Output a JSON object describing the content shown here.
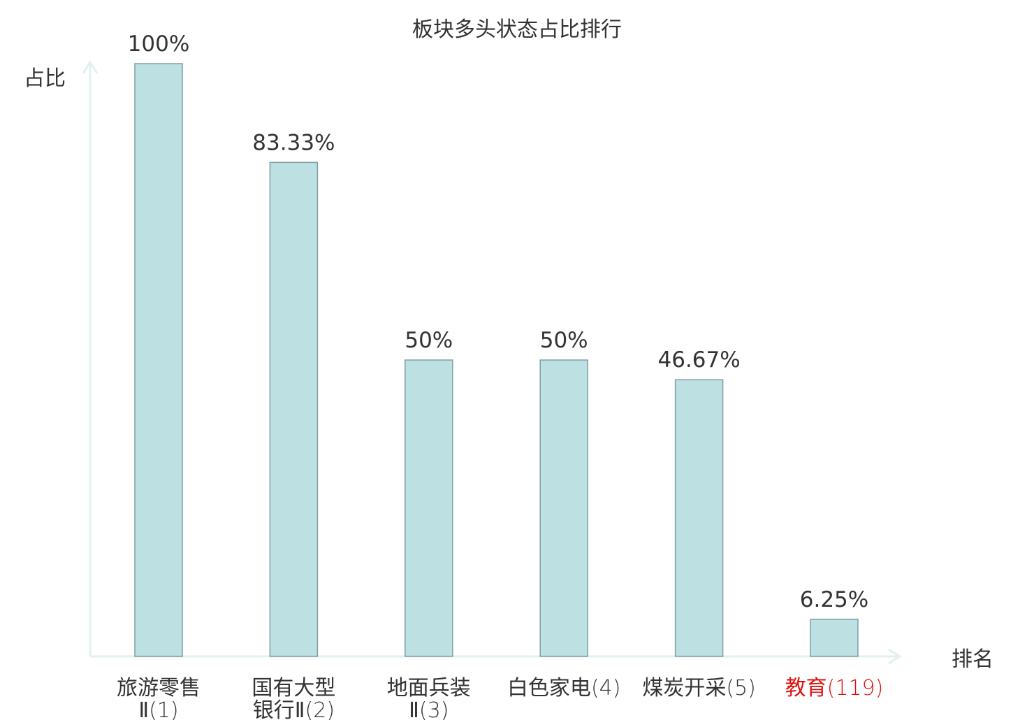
{
  "chart_data": {
    "type": "bar",
    "title": "板块多头状态占比排行",
    "ylabel": "占比",
    "xlabel": "排名",
    "ylim": [
      0,
      100
    ],
    "grid": false,
    "categories": [
      {
        "lines": [
          {
            "name": "旅游零售",
            "rank": ""
          },
          {
            "name": "Ⅱ",
            "rank": "(1)"
          }
        ],
        "highlight": false
      },
      {
        "lines": [
          {
            "name": "国有大型",
            "rank": ""
          },
          {
            "name": "银行Ⅱ",
            "rank": "(2)"
          }
        ],
        "highlight": false
      },
      {
        "lines": [
          {
            "name": "地面兵装",
            "rank": ""
          },
          {
            "name": "Ⅱ",
            "rank": "(3)"
          }
        ],
        "highlight": false
      },
      {
        "lines": [
          {
            "name": "白色家电",
            "rank": "(4)"
          }
        ],
        "highlight": false
      },
      {
        "lines": [
          {
            "name": "煤炭开采",
            "rank": "(5)"
          }
        ],
        "highlight": false
      },
      {
        "lines": [
          {
            "name": "教育",
            "rank": "(119)"
          }
        ],
        "highlight": true
      }
    ],
    "values": [
      100,
      83.33,
      50,
      50,
      46.67,
      6.25
    ],
    "value_labels": [
      "100%",
      "83.33%",
      "50%",
      "50%",
      "46.67%",
      "6.25%"
    ],
    "colors": {
      "bar_fill": "#bde0e3",
      "bar_stroke": "#7f9fa3",
      "axis": "#e0f1ef",
      "text": "#333333",
      "highlight": "#dd1111"
    }
  }
}
